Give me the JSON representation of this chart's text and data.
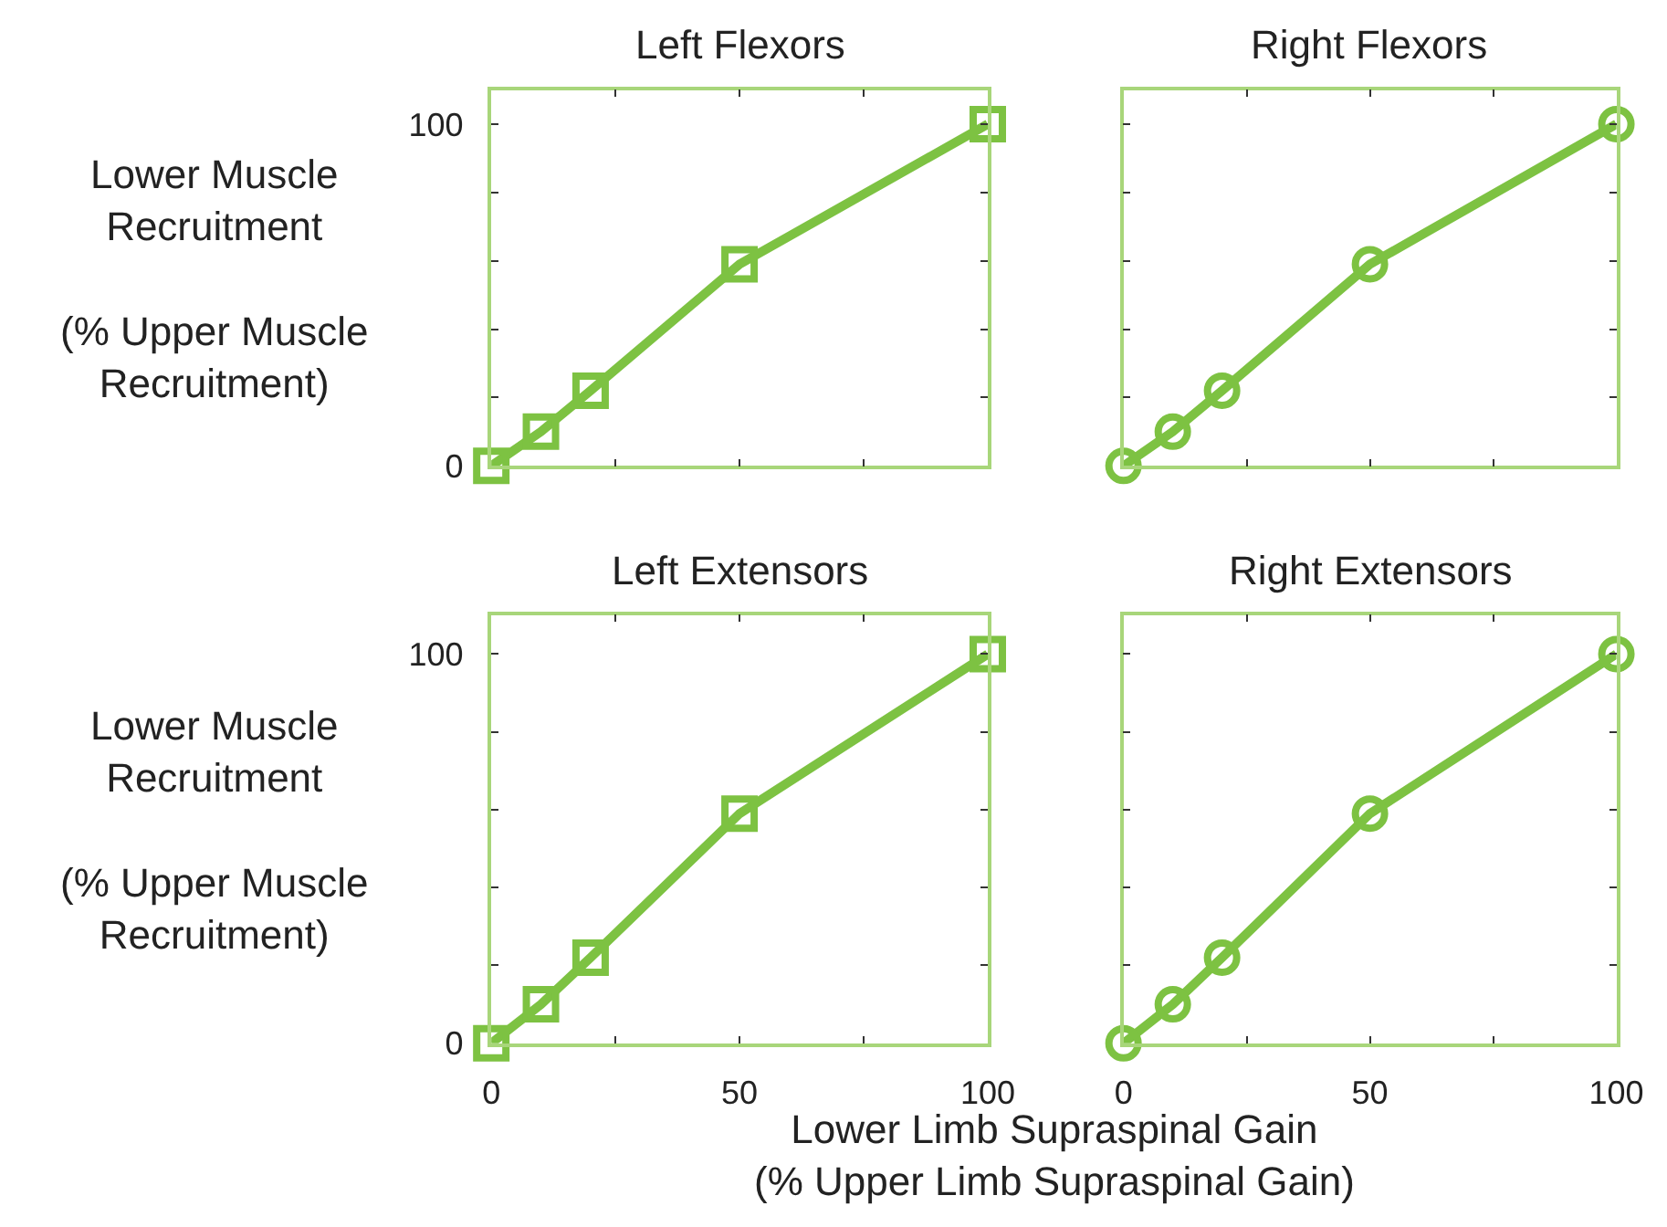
{
  "chart_data": [
    {
      "type": "line",
      "title": "Left Flexors",
      "ylabel": "Lower Muscle\nRecruitment\n\n(% Upper Muscle\nRecruitment)",
      "x": [
        0,
        10,
        20,
        50,
        100
      ],
      "series": [
        {
          "color": "#7dc242",
          "values": [
            0,
            10,
            22,
            59,
            100
          ]
        }
      ],
      "marker": "square",
      "xlim": [
        0,
        100
      ],
      "ylim": [
        0,
        110
      ],
      "xticks": [
        0,
        {
          "value": 25,
          "label": null
        },
        {
          "value": 50,
          "label": null
        },
        {
          "value": 75,
          "label": null
        },
        {
          "value": 100,
          "label": null
        }
      ],
      "yticks": [
        0,
        {
          "value": 20,
          "label": null
        },
        {
          "value": 40,
          "label": null
        },
        {
          "value": 60,
          "label": null
        },
        {
          "value": 80,
          "label": null
        },
        100
      ],
      "tick_labels": "y"
    },
    {
      "type": "line",
      "title": "Right Flexors",
      "x": [
        0,
        10,
        20,
        50,
        100
      ],
      "series": [
        {
          "color": "#7dc242",
          "values": [
            0,
            10,
            22,
            59,
            100
          ]
        }
      ],
      "marker": "circle",
      "xlim": [
        0,
        100
      ],
      "ylim": [
        0,
        110
      ],
      "xticks": [
        {
          "value": 0,
          "label": null
        },
        {
          "value": 25,
          "label": null
        },
        {
          "value": 50,
          "label": null
        },
        {
          "value": 75,
          "label": null
        },
        {
          "value": 100,
          "label": null
        }
      ],
      "yticks": [
        {
          "value": 0,
          "label": null
        },
        {
          "value": 20,
          "label": null
        },
        {
          "value": 40,
          "label": null
        },
        {
          "value": 60,
          "label": null
        },
        {
          "value": 80,
          "label": null
        },
        {
          "value": 100,
          "label": null
        }
      ],
      "tick_labels": false
    },
    {
      "type": "line",
      "title": "Left Extensors",
      "ylabel": "Lower Muscle\nRecruitment\n\n(% Upper Muscle\nRecruitment)",
      "xlabel": "Lower Limb Supraspinal Gain\n(% Upper Limb Supraspinal Gain)",
      "x": [
        0,
        10,
        20,
        50,
        100
      ],
      "series": [
        {
          "color": "#7dc242",
          "values": [
            0,
            10,
            22,
            59,
            100
          ]
        }
      ],
      "marker": "square",
      "xlim": [
        0,
        100
      ],
      "ylim": [
        0,
        110
      ],
      "xticks": [
        0,
        {
          "value": 25,
          "label": null
        },
        50,
        {
          "value": 75,
          "label": null
        },
        100
      ],
      "yticks": [
        0,
        {
          "value": 20,
          "label": null
        },
        {
          "value": 40,
          "label": null
        },
        {
          "value": 60,
          "label": null
        },
        {
          "value": 80,
          "label": null
        },
        100
      ]
    },
    {
      "type": "line",
      "title": "Right Extensors",
      "x": [
        0,
        10,
        20,
        50,
        100
      ],
      "series": [
        {
          "color": "#7dc242",
          "values": [
            0,
            10,
            22,
            59,
            100
          ]
        }
      ],
      "marker": "circle",
      "xlim": [
        0,
        100
      ],
      "ylim": [
        0,
        110
      ],
      "xticks": [
        0,
        {
          "value": 25,
          "label": null
        },
        50,
        {
          "value": 75,
          "label": null
        },
        100
      ],
      "yticks": [
        {
          "value": 0,
          "label": null
        },
        {
          "value": 20,
          "label": null
        },
        {
          "value": 40,
          "label": null
        },
        {
          "value": 60,
          "label": null
        },
        {
          "value": 80,
          "label": null
        },
        {
          "value": 100,
          "label": null
        }
      ],
      "tick_labels": "x"
    }
  ]
}
